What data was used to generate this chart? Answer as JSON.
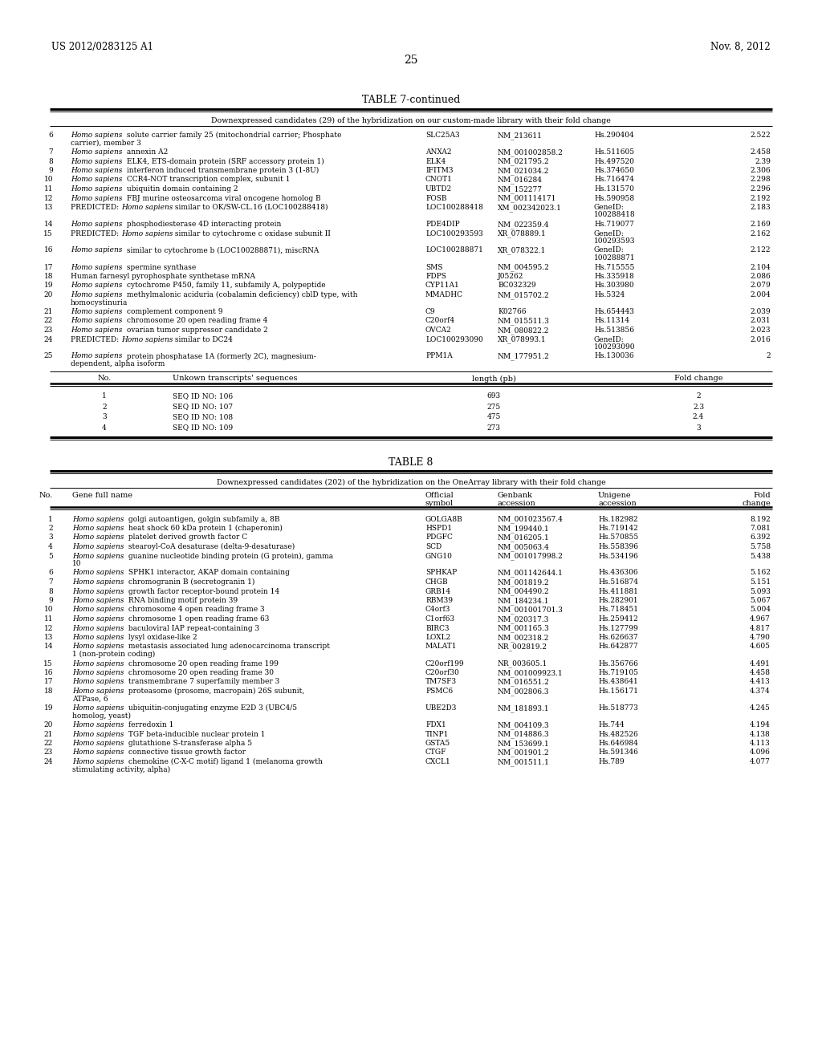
{
  "page_header_left": "US 2012/0283125 A1",
  "page_header_right": "Nov. 8, 2012",
  "page_number": "25",
  "table7_title": "TABLE 7-continued",
  "table7_subtitle": "Downexpressed candidates (29) of the hybridization on our custom-made library with their fold change",
  "table7_main_rows": [
    [
      "6",
      "Homo sapiens solute carrier family 25 (mitochondrial carrier; Phosphate\ncarrier), member 3",
      "SLC25A3",
      "NM_213611",
      "Hs.290404",
      "2.522"
    ],
    [
      "7",
      "Homo sapiens annexin A2",
      "ANXA2",
      "NM_001002858.2",
      "Hs.511605",
      "2.458"
    ],
    [
      "8",
      "Homo sapiens ELK4, ETS-domain protein (SRF accessory protein 1)",
      "ELK4",
      "NM_021795.2",
      "Hs.497520",
      "2.39"
    ],
    [
      "9",
      "Homo sapiens interferon induced transmembrane protein 3 (1-8U)",
      "IFITM3",
      "NM_021034.2",
      "Hs.374650",
      "2.306"
    ],
    [
      "10",
      "Homo sapiens CCR4-NOT transcription complex, subunit 1",
      "CNOT1",
      "NM_016284",
      "Hs.716474",
      "2.298"
    ],
    [
      "11",
      "Homo sapiens ubiquitin domain containing 2",
      "UBTD2",
      "NM_152277",
      "Hs.131570",
      "2.296"
    ],
    [
      "12",
      "Homo sapiens FBJ murine osteosarcoma viral oncogene homolog B",
      "FOSB",
      "NM_001114171",
      "Hs.590958",
      "2.192"
    ],
    [
      "13",
      "PREDICTED: Homo sapiens similar to OK/SW-CL.16 (LOC100288418)",
      "LOC100288418",
      "XM_002342023.1",
      "GeneID:\n100288418",
      "2.183"
    ],
    [
      "14",
      "Homo sapiens phosphodiesterase 4D interacting protein",
      "PDE4DIP",
      "NM_022359.4",
      "Hs.719077",
      "2.169"
    ],
    [
      "15",
      "PREDICTED: Homo sapiens similar to cytochrome c oxidase subunit II",
      "LOC100293593",
      "XR_078889.1",
      "GeneID:\n100293593",
      "2.162"
    ],
    [
      "16",
      "Homo sapiens similar to cytochrome b (LOC100288871), miscRNA",
      "LOC100288871",
      "XR_078322.1",
      "GeneID:\n100288871",
      "2.122"
    ],
    [
      "17",
      "Homo sapiens spermine synthase",
      "SMS",
      "NM_004595.2",
      "Hs.715555",
      "2.104"
    ],
    [
      "18",
      "Human farnesyl pyrophosphate synthetase mRNA",
      "FDPS",
      "J05262",
      "Hs.335918",
      "2.086"
    ],
    [
      "19",
      "Homo sapiens cytochrome P450, family 11, subfamily A, polypeptide",
      "CYP11A1",
      "BC032329",
      "Hs.303980",
      "2.079"
    ],
    [
      "20",
      "Homo sapiens methylmalonic aciduria (cobalamin deficiency) cblD type, with\nhomocystinuria",
      "MMADHC",
      "NM_015702.2",
      "Hs.5324",
      "2.004"
    ],
    [
      "21",
      "Homo sapiens complement component 9",
      "C9",
      "K02766",
      "Hs.654443",
      "2.039"
    ],
    [
      "22",
      "Homo sapiens chromosome 20 open reading frame 4",
      "C20orf4",
      "NM_015511.3",
      "Hs.11314",
      "2.031"
    ],
    [
      "23",
      "Homo sapiens ovarian tumor suppressor candidate 2",
      "OVCA2",
      "NM_080822.2",
      "Hs.513856",
      "2.023"
    ],
    [
      "24",
      "PREDICTED: Homo sapiens similar to DC24",
      "LOC100293090",
      "XR_078993.1",
      "GeneID:\n100293090",
      "2.016"
    ],
    [
      "25",
      "Homo sapiens protein phosphatase 1A (formerly 2C), magnesium-\ndependent, alpha isoform",
      "PPM1A",
      "NM_177951.2",
      "Hs.130036",
      "2"
    ]
  ],
  "table7_seq_header": [
    "No.",
    "Unkown transcripts' sequences",
    "length (pb)",
    "Fold change"
  ],
  "table7_seq_rows": [
    [
      "1",
      "SEQ ID NO: 106",
      "693",
      "2"
    ],
    [
      "2",
      "SEQ ID NO: 107",
      "275",
      "2.3"
    ],
    [
      "3",
      "SEQ ID NO: 108",
      "475",
      "2.4"
    ],
    [
      "4",
      "SEQ ID NO: 109",
      "273",
      "3"
    ]
  ],
  "table8_title": "TABLE 8",
  "table8_subtitle": "Downexpressed candidates (202) of the hybridization on the OneArray library with their fold change",
  "table8_header": [
    "No.",
    "Gene full name",
    "Official\nsymbol",
    "Genbank\naccession",
    "Unigene\naccession",
    "Fold\nchange"
  ],
  "table8_rows": [
    [
      "1",
      "Homo sapiens golgi autoantigen, golgin subfamily a, 8B",
      "GOLGA8B",
      "NM_001023567.4",
      "Hs.182982",
      "8.192"
    ],
    [
      "2",
      "Homo sapiens heat shock 60 kDa protein 1 (chaperonin)",
      "HSPD1",
      "NM_199440.1",
      "Hs.719142",
      "7.081"
    ],
    [
      "3",
      "Homo sapiens platelet derived growth factor C",
      "PDGFC",
      "NM_016205.1",
      "Hs.570855",
      "6.392"
    ],
    [
      "4",
      "Homo sapiens stearoyl-CoA desaturase (delta-9-desaturase)",
      "SCD",
      "NM_005063.4",
      "Hs.558396",
      "5.758"
    ],
    [
      "5",
      "Homo sapiens guanine nucleotide binding protein (G protein), gamma\n10",
      "GNG10",
      "NM_001017998.2",
      "Hs.534196",
      "5.438"
    ],
    [
      "6",
      "Homo sapiens SPHK1 interactor, AKAP domain containing",
      "SPHKAP",
      "NM_001142644.1",
      "Hs.436306",
      "5.162"
    ],
    [
      "7",
      "Homo sapiens chromogranin B (secretogranin 1)",
      "CHGB",
      "NM_001819.2",
      "Hs.516874",
      "5.151"
    ],
    [
      "8",
      "Homo sapiens growth factor receptor-bound protein 14",
      "GRB14",
      "NM_004490.2",
      "Hs.411881",
      "5.093"
    ],
    [
      "9",
      "Homo sapiens RNA binding motif protein 39",
      "RBM39",
      "NM_184234.1",
      "Hs.282901",
      "5.067"
    ],
    [
      "10",
      "Homo sapiens chromosome 4 open reading frame 3",
      "C4orf3",
      "NM_001001701.3",
      "Hs.718451",
      "5.004"
    ],
    [
      "11",
      "Homo sapiens chromosome 1 open reading frame 63",
      "C1orf63",
      "NM_020317.3",
      "Hs.259412",
      "4.967"
    ],
    [
      "12",
      "Homo sapiens baculoviral IAP repeat-containing 3",
      "BIRC3",
      "NM_001165.3",
      "Hs.127799",
      "4.817"
    ],
    [
      "13",
      "Homo sapiens lysyl oxidase-like 2",
      "LOXL2",
      "NM_002318.2",
      "Hs.626637",
      "4.790"
    ],
    [
      "14",
      "Homo sapiens metastasis associated lung adenocarcinoma transcript\n1 (non-protein coding)",
      "MALAT1",
      "NR_002819.2",
      "Hs.642877",
      "4.605"
    ],
    [
      "15",
      "Homo sapiens chromosome 20 open reading frame 199",
      "C20orf199",
      "NR_003605.1",
      "Hs.356766",
      "4.491"
    ],
    [
      "16",
      "Homo sapiens chromosome 20 open reading frame 30",
      "C20orf30",
      "NM_001009923.1",
      "Hs.719105",
      "4.458"
    ],
    [
      "17",
      "Homo sapiens transmembrane 7 superfamily member 3",
      "TM7SF3",
      "NM_016551.2",
      "Hs.438641",
      "4.413"
    ],
    [
      "18",
      "Homo sapiens proteasome (prosome, macropain) 26S subunit,\nATPase, 6",
      "PSMC6",
      "NM_002806.3",
      "Hs.156171",
      "4.374"
    ],
    [
      "19",
      "Homo sapiens ubiquitin-conjugating enzyme E2D 3 (UBC4/5\nhomolog, yeast)",
      "UBE2D3",
      "NM_181893.1",
      "Hs.518773",
      "4.245"
    ],
    [
      "20",
      "Homo sapiens ferredoxin 1",
      "FDX1",
      "NM_004109.3",
      "Hs.744",
      "4.194"
    ],
    [
      "21",
      "Homo sapiens TGF beta-inducible nuclear protein 1",
      "TINP1",
      "NM_014886.3",
      "Hs.482526",
      "4.138"
    ],
    [
      "22",
      "Homo sapiens glutathione S-transferase alpha 5",
      "GSTA5",
      "NM_153699.1",
      "Hs.646984",
      "4.113"
    ],
    [
      "23",
      "Homo sapiens connective tissue growth factor",
      "CTGF",
      "NM_001901.2",
      "Hs.591346",
      "4.096"
    ],
    [
      "24",
      "Homo sapiens chemokine (C-X-C motif) ligand 1 (melanoma growth\nstimulating activity, alpha)",
      "CXCL1",
      "NM_001511.1",
      "Hs.789",
      "4.077"
    ]
  ]
}
